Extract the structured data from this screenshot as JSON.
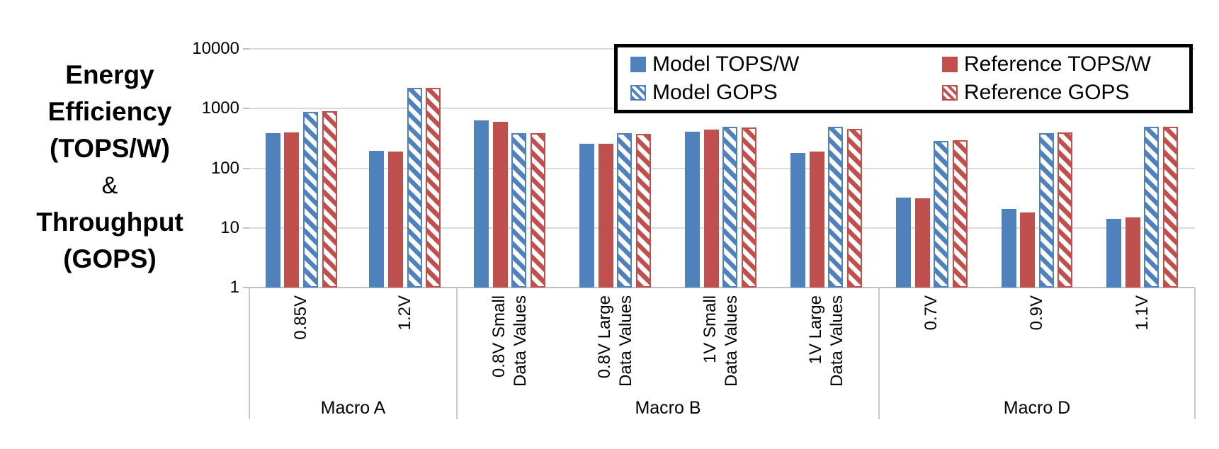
{
  "title": {
    "lines": [
      "Energy",
      "Efficiency",
      "(TOPS/W)",
      "&",
      "Throughput",
      "(GOPS)"
    ]
  },
  "colors": {
    "model": "#4F81BD",
    "reference": "#C0504D",
    "gridline": "#D9D9D9",
    "axis_line": "#BFBFBF",
    "legend_border": "#000000"
  },
  "legend": {
    "entries": [
      {
        "label": "Model TOPS/W",
        "series": "model",
        "hatched": false
      },
      {
        "label": "Reference TOPS/W",
        "series": "reference",
        "hatched": false
      },
      {
        "label": "Model GOPS",
        "series": "model",
        "hatched": true
      },
      {
        "label": "Reference GOPS",
        "series": "reference",
        "hatched": true
      }
    ]
  },
  "chart_data": {
    "type": "bar",
    "y_scale": "log",
    "ylabel": "Energy Efficiency (TOPS/W) & Throughput (GOPS)",
    "y_ticks": [
      1,
      10,
      100,
      1000,
      10000
    ],
    "y_range": [
      1,
      10000
    ],
    "grid": true,
    "legend_position": "top-right",
    "series_names": [
      "Model TOPS/W",
      "Reference TOPS/W",
      "Model GOPS",
      "Reference GOPS"
    ],
    "groups": [
      {
        "label": "Macro A",
        "clusters": [
          {
            "label": "0.85V",
            "label_lines": [
              "0.85V"
            ],
            "values": [
              385,
              400,
              890,
              900
            ]
          },
          {
            "label": "1.2V",
            "label_lines": [
              "1.2V"
            ],
            "values": [
              195,
              190,
              2250,
              2200
            ]
          }
        ]
      },
      {
        "label": "Macro B",
        "clusters": [
          {
            "label": "0.8V Small Data Values",
            "label_lines": [
              "0.8V Small",
              "Data Values"
            ],
            "values": [
              640,
              600,
              390,
              385
            ]
          },
          {
            "label": "0.8V Large Data Values",
            "label_lines": [
              "0.8V Large",
              "Data Values"
            ],
            "values": [
              260,
              260,
              385,
              380
            ]
          },
          {
            "label": "1V Small Data Values",
            "label_lines": [
              "1V Small",
              "Data Values"
            ],
            "values": [
              410,
              440,
              495,
              480
            ]
          },
          {
            "label": "1V Large Data Values",
            "label_lines": [
              "1V Large",
              "Data Values"
            ],
            "values": [
              180,
              190,
              490,
              460
            ]
          }
        ]
      },
      {
        "label": "Macro D",
        "clusters": [
          {
            "label": "0.7V",
            "label_lines": [
              "0.7V"
            ],
            "values": [
              32,
              31,
              290,
              295
            ]
          },
          {
            "label": "0.9V",
            "label_lines": [
              "0.9V"
            ],
            "values": [
              21,
              18,
              390,
              400
            ]
          },
          {
            "label": "1.1V",
            "label_lines": [
              "1.1V"
            ],
            "values": [
              14,
              15,
              490,
              495
            ]
          }
        ]
      }
    ]
  }
}
